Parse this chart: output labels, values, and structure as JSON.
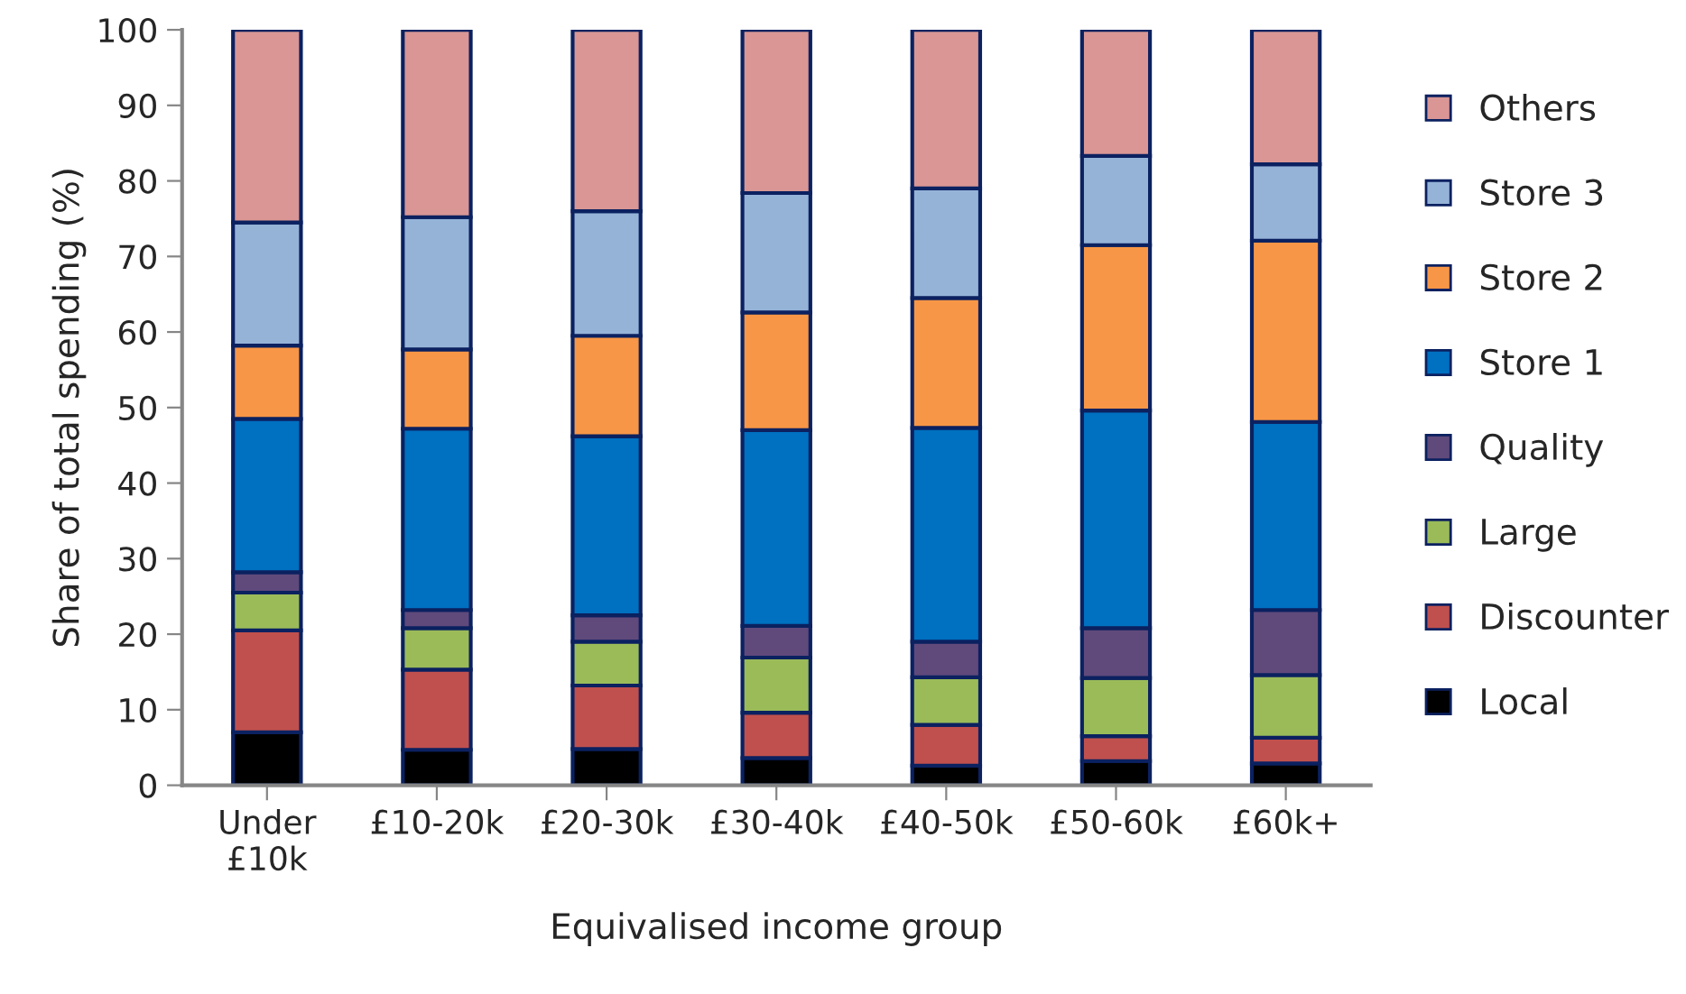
{
  "chart_data": {
    "type": "bar",
    "stacked": true,
    "xlabel": "Equivalised income group",
    "ylabel": "Share of total spending (%)",
    "categories": [
      "Under\n£10k",
      "£10-20k",
      "£20-30k",
      "£30-40k",
      "£40-50k",
      "£50-60k",
      "£60k+"
    ],
    "series": [
      {
        "name": "Local",
        "color": "#000000",
        "values": [
          7.0,
          4.7,
          4.8,
          3.6,
          2.6,
          3.2,
          2.9
        ]
      },
      {
        "name": "Discounter",
        "color": "#c0504d",
        "values": [
          13.5,
          10.6,
          8.4,
          6.0,
          5.4,
          3.3,
          3.4
        ]
      },
      {
        "name": "Large",
        "color": "#9bbb59",
        "values": [
          5.0,
          5.5,
          5.8,
          7.3,
          6.3,
          7.7,
          8.3
        ]
      },
      {
        "name": "Quality",
        "color": "#604a7b",
        "values": [
          2.7,
          2.4,
          3.5,
          4.2,
          4.7,
          6.6,
          8.6
        ]
      },
      {
        "name": "Store 1",
        "color": "#0070c0",
        "values": [
          20.3,
          24.0,
          23.7,
          25.9,
          28.3,
          28.8,
          24.9
        ]
      },
      {
        "name": "Store 2",
        "color": "#f79646",
        "values": [
          9.7,
          10.5,
          13.3,
          15.6,
          17.2,
          21.9,
          24.0
        ]
      },
      {
        "name": "Store 3",
        "color": "#95b3d7",
        "values": [
          16.3,
          17.5,
          16.5,
          15.8,
          14.5,
          11.8,
          10.1
        ]
      },
      {
        "name": "Others",
        "color": "#d99694",
        "values": [
          25.5,
          24.8,
          24.0,
          21.6,
          21.0,
          16.7,
          17.8
        ]
      }
    ],
    "ylim": [
      0,
      100
    ],
    "yticks": [
      0,
      10,
      20,
      30,
      40,
      50,
      60,
      70,
      80,
      90,
      100
    ],
    "grid": false,
    "legend": "right"
  }
}
